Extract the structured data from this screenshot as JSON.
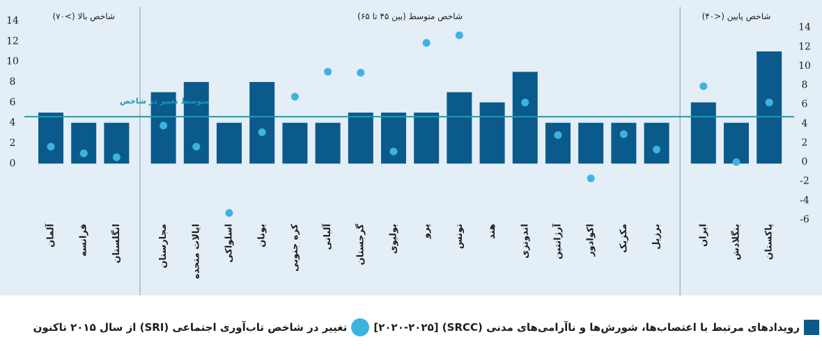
{
  "chart_data": {
    "type": "bar",
    "groups": [
      {
        "label": "شاخص بالا (>۷۰)",
        "categories": [
          "آلمان",
          "فرانسه",
          "انگلستان"
        ]
      },
      {
        "label": "شاخص متوسط (بین ۴۵ تا ۶۵)",
        "categories": [
          "مجارستان",
          "ایالات متحده",
          "اسلواکی",
          "یونان",
          "کره جنوبی",
          "آلبانی",
          "گرجستان",
          "بولیوی",
          "پرو",
          "تونس",
          "هند",
          "اندونزی",
          "آرژانتین",
          "اکوادور",
          "مکزیک",
          "برزیل"
        ]
      },
      {
        "label": "شاخص پایین (<۴۰)",
        "categories": [
          "ایران",
          "بنگلادش",
          "پاکستان"
        ]
      }
    ],
    "series": [
      {
        "name": "رویدادهای مرتبط با اعتصاب‌ها، شورش‌ها و ناآرامی‌های مدنی (SRCC) [۲۰۲۰-۲۰۲۵]",
        "type": "bar",
        "color": "#0a5a8c",
        "axis": "y",
        "values": [
          5,
          4,
          4,
          7,
          8,
          4,
          8,
          4,
          4,
          5,
          5,
          5,
          7,
          6,
          9,
          4,
          4,
          4,
          4,
          6,
          4,
          11
        ]
      },
      {
        "name": "تغییر در شاخص تاب‌آوری اجتماعی (SRI) از سال ۲۰۱۵ تاکنون",
        "type": "scatter",
        "color": "#3bb4e2",
        "axis": "y2",
        "values": [
          1.6,
          0.9,
          0.5,
          3.8,
          1.6,
          -5.3,
          3.1,
          6.8,
          9.4,
          9.3,
          1.1,
          12.4,
          13.2,
          null,
          6.2,
          2.8,
          -1.7,
          2.9,
          1.3,
          7.9,
          0,
          6.2
        ]
      }
    ],
    "average_line": {
      "label": "متوسط تغییر در شاخص",
      "value": 4.6,
      "color": "#1a9bb0"
    },
    "ylim": [
      -5.5,
      14
    ],
    "yticks": [
      0,
      2,
      4,
      6,
      8,
      10,
      12,
      14
    ],
    "y2lim": [
      -6,
      14.7
    ],
    "y2ticks": [
      -6,
      -4,
      -2,
      0,
      2,
      4,
      6,
      8,
      10,
      12,
      14
    ]
  }
}
